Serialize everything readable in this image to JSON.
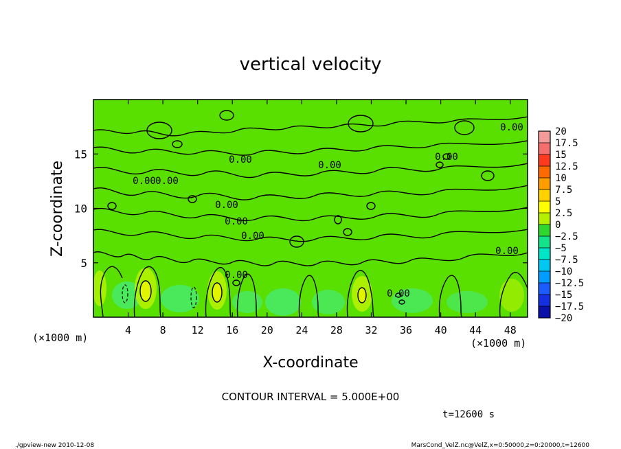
{
  "chart_data": {
    "type": "heatmap",
    "title": "vertical velocity",
    "xlabel": "X-coordinate",
    "ylabel": "Z-coordinate",
    "x_unit": "(×1000 m)",
    "y_unit": "(×1000 m)",
    "xlim": [
      0,
      50
    ],
    "ylim": [
      0,
      20
    ],
    "x_ticks": [
      4,
      8,
      12,
      16,
      20,
      24,
      28,
      32,
      36,
      40,
      44,
      48
    ],
    "y_ticks": [
      5,
      10,
      15
    ],
    "contour_label": "0.00",
    "colorbar": {
      "levels": [
        "20",
        "17.5",
        "15",
        "12.5",
        "10",
        "7.5",
        "5",
        "2.5",
        "0",
        "-2.5",
        "-5",
        "-7.5",
        "-10",
        "-12.5",
        "-15",
        "-17.5",
        "-20"
      ],
      "colors": [
        "#f39a9a",
        "#f56f6f",
        "#ff3a1f",
        "#ff6a00",
        "#ff9d00",
        "#ffd200",
        "#ffff00",
        "#b4f000",
        "#2ed62e",
        "#14e38a",
        "#00e5c8",
        "#00c8f2",
        "#009cff",
        "#1b5cff",
        "#1530e0",
        "#0a10a8",
        "#6a10b0"
      ]
    },
    "background_color": "#5ae000",
    "contour_color": "#000000"
  },
  "footer": {
    "contour_interval": "CONTOUR INTERVAL = 5.000E+00",
    "time": "t=12600 s",
    "program": "./gpview-new  2010-12-08",
    "source": "MarsCond_VelZ.nc@VelZ,x=0:50000,z=0:20000,t=12600"
  }
}
